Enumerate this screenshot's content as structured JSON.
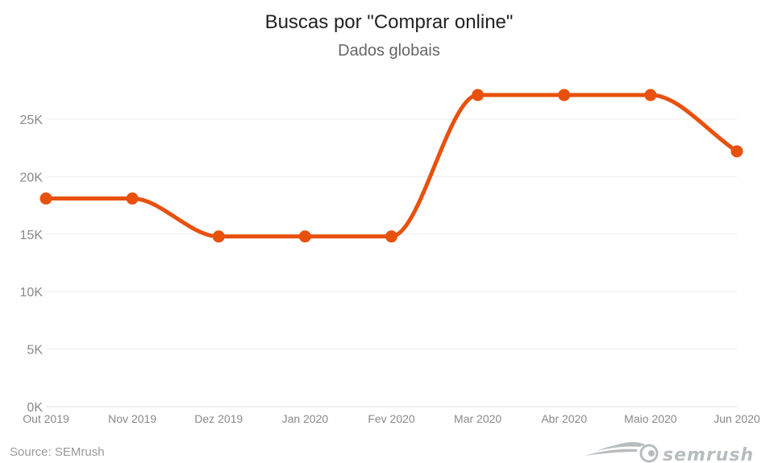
{
  "chart_data": {
    "type": "line",
    "title": "Buscas por \"Comprar online\"",
    "subtitle": "Dados globais",
    "categories": [
      "Out 2019",
      "Nov 2019",
      "Dez 2019",
      "Jan 2020",
      "Fev 2020",
      "Mar 2020",
      "Abr 2020",
      "Maio 2020",
      "Jun 2020"
    ],
    "values": [
      18100,
      18100,
      14800,
      14800,
      14800,
      27100,
      27100,
      27100,
      22200
    ],
    "yticks": [
      0,
      5000,
      10000,
      15000,
      20000,
      25000
    ],
    "ytick_labels": [
      "0K",
      "5K",
      "10K",
      "15K",
      "20K",
      "25K"
    ],
    "ylim": [
      0,
      30000
    ],
    "grid": true,
    "line_color": "#e8500e",
    "source": "Source: SEMrush",
    "logo": "SEMRUSH"
  }
}
